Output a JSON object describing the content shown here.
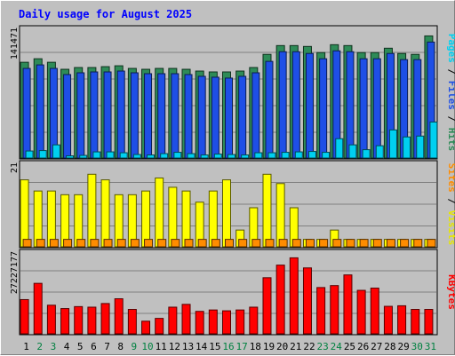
{
  "chart_data": {
    "type": "bar",
    "title": "Daily usage for August 2025",
    "categories": [
      "1",
      "2",
      "3",
      "4",
      "5",
      "6",
      "7",
      "8",
      "9",
      "10",
      "11",
      "12",
      "13",
      "14",
      "15",
      "16",
      "17",
      "18",
      "19",
      "20",
      "21",
      "22",
      "23",
      "24",
      "25",
      "26",
      "27",
      "28",
      "29",
      "30",
      "31"
    ],
    "weekend_days": [
      "2",
      "3",
      "9",
      "10",
      "16",
      "17",
      "23",
      "24",
      "30",
      "31"
    ],
    "panels": [
      {
        "name": "pages-files-hits",
        "ymax_label": "141471",
        "ymax": 141471,
        "series": [
          {
            "name": "Hits",
            "color": "#2e8b57",
            "values": [
              109000,
              113000,
              109000,
              101000,
              103000,
              103000,
              104000,
              105000,
              102000,
              101000,
              102000,
              102000,
              101000,
              99000,
              98000,
              98000,
              99000,
              103000,
              118000,
              128000,
              128000,
              127000,
              120000,
              129000,
              128000,
              120000,
              120000,
              125000,
              119000,
              118000,
              139000
            ]
          },
          {
            "name": "Files",
            "color": "#1e4fe6",
            "values": [
              102000,
              106000,
              102000,
              95000,
              97000,
              98000,
              98000,
              99000,
              97000,
              96000,
              96000,
              96000,
              95000,
              93000,
              92000,
              91000,
              93000,
              97000,
              110000,
              121000,
              121000,
              119000,
              113000,
              122000,
              121000,
              113000,
              113000,
              119000,
              112000,
              112000,
              132000
            ]
          },
          {
            "name": "Pages",
            "color": "#00d0f0",
            "values": [
              8000,
              8500,
              15000,
              2500,
              3000,
              7000,
              7000,
              6000,
              4000,
              3500,
              5000,
              6500,
              5000,
              3500,
              4500,
              4000,
              3500,
              6000,
              6000,
              6500,
              7000,
              7500,
              6500,
              22000,
              15000,
              9500,
              14000,
              32000,
              24000,
              25000,
              41000
            ]
          }
        ]
      },
      {
        "name": "visits-sites",
        "ymax_label": "21",
        "ymax": 21,
        "series": [
          {
            "name": "Visits",
            "color": "#ffff00",
            "values": [
              18,
              15,
              15,
              14,
              14,
              19.5,
              18,
              14,
              14,
              15,
              18.5,
              16,
              15,
              12,
              15,
              18,
              4.5,
              10.5,
              19.5,
              17,
              10.5,
              2,
              2,
              4.5,
              2,
              2,
              2,
              2,
              2,
              2,
              2
            ]
          },
          {
            "name": "Sites",
            "color": "#ff8c00",
            "values": [
              2,
              2,
              2,
              2,
              2,
              2,
              2,
              2,
              2,
              2,
              2,
              2,
              2,
              2,
              2,
              2,
              2,
              2,
              2,
              2,
              2,
              2,
              2,
              2,
              2,
              2,
              2,
              2,
              2,
              2,
              2
            ]
          }
        ]
      },
      {
        "name": "kbytes",
        "ymax_label": "27227177",
        "ymax": 27227177,
        "series": [
          {
            "name": "KBytes",
            "color": "#ff0000",
            "values": [
              12200000,
              18000000,
              10200000,
              9000000,
              9700000,
              9500000,
              10800000,
              12500000,
              8700000,
              4500000,
              5500000,
              9500000,
              10500000,
              8000000,
              8500000,
              8200000,
              8500000,
              9500000,
              20000000,
              24500000,
              27100000,
              23500000,
              16500000,
              17200000,
              21000000,
              15500000,
              16300000,
              9800000,
              10000000,
              8700000,
              8700000
            ]
          }
        ]
      }
    ],
    "right_labels": {
      "top": [
        {
          "text": "Hits",
          "color": "#2e8b57"
        },
        {
          "text": "Files",
          "color": "#1e4fe6"
        },
        {
          "text": "Pages",
          "color": "#00d0f0"
        }
      ],
      "middle": [
        {
          "text": "Visits",
          "color": "#e6e600"
        },
        {
          "text": "Sites",
          "color": "#ff8c00"
        }
      ],
      "bottom": [
        {
          "text": "KBytes",
          "color": "#ff0000"
        }
      ]
    },
    "colors": {
      "background": "#c0c0c0",
      "plot_background": "#c0c0c0",
      "grid": "#808080",
      "title": "#0000ff",
      "weekday_label": "#000000",
      "weekend_label": "#008040"
    }
  }
}
